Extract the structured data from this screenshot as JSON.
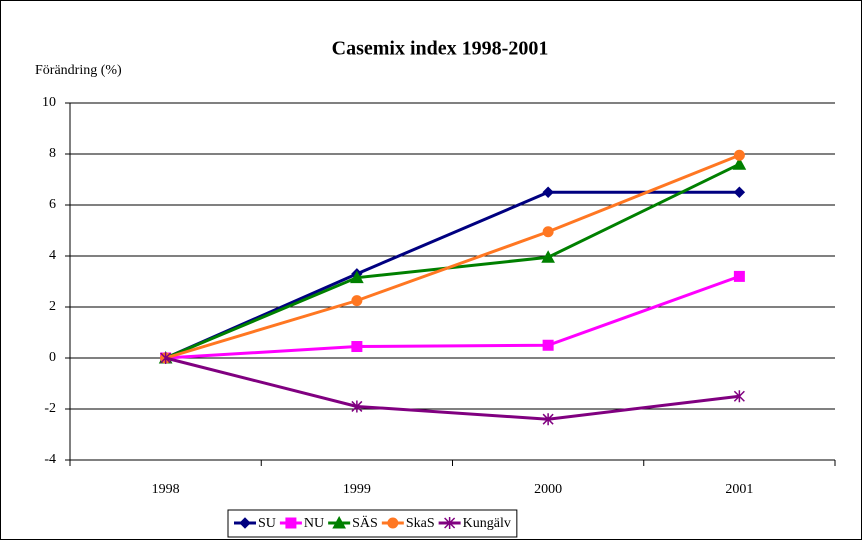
{
  "chart_data": {
    "type": "line",
    "title": "Casemix index 1998-2001",
    "ylabel": "Förändring (%)",
    "categories": [
      "1998",
      "1999",
      "2000",
      "2001"
    ],
    "series": [
      {
        "name": "SU",
        "color": "#000080",
        "marker": "diamond",
        "values": [
          0,
          3.3,
          6.5,
          6.5
        ]
      },
      {
        "name": "NU",
        "color": "#ff00ff",
        "marker": "square",
        "values": [
          0,
          0.45,
          0.5,
          3.2
        ]
      },
      {
        "name": "SÄS",
        "color": "#008000",
        "marker": "triangle",
        "values": [
          0,
          3.15,
          3.95,
          7.6
        ]
      },
      {
        "name": "SkaS",
        "color": "#ff7722",
        "marker": "circle",
        "values": [
          0,
          2.25,
          4.95,
          7.95
        ]
      },
      {
        "name": "Kungälv",
        "color": "#800080",
        "marker": "star",
        "values": [
          0,
          -1.9,
          -2.4,
          -1.5
        ]
      }
    ],
    "ylim": [
      -4,
      10
    ],
    "yticks": [
      -4,
      -2,
      0,
      2,
      4,
      6,
      8,
      10
    ],
    "grid": true,
    "legend": "bottom"
  }
}
